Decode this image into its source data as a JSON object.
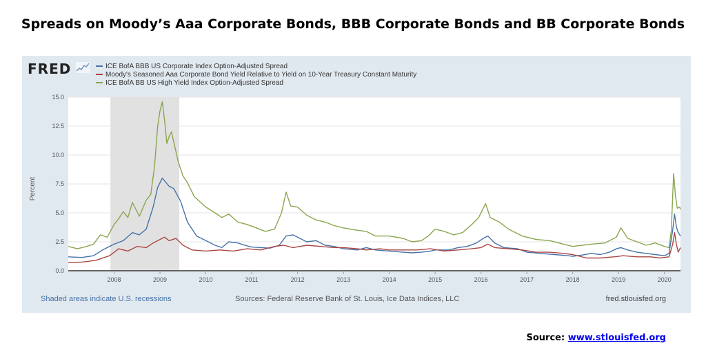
{
  "page": {
    "title": "Spreads on Moody’s Aaa Corporate Bonds, BBB Corporate Bonds and BB Corporate Bonds",
    "source_label": "Source:",
    "source_link": "www.stlouisfed.org"
  },
  "fred": {
    "logo": "FRED",
    "recession_note": "Shaded areas indicate U.S. recessions",
    "sources": "Sources: Federal Reserve Bank of St. Louis, Ice Data Indices, LLC",
    "site": "fred.stlouisfed.org"
  },
  "colors": {
    "bbb": "#4572a7",
    "aaa": "#aa4643",
    "bb": "#89a54e",
    "recession": "#e1e1e1",
    "panel": "#e1e9f0"
  },
  "chart_data": {
    "type": "line",
    "title": "",
    "xlabel": "",
    "ylabel": "Percent",
    "xlim": [
      2007.0,
      2020.35
    ],
    "ylim": [
      0,
      15
    ],
    "yticks": [
      "0.0",
      "2.5",
      "5.0",
      "7.5",
      "10.0",
      "12.5",
      "15.0"
    ],
    "xticks": [
      "2008",
      "2009",
      "2010",
      "2011",
      "2012",
      "2013",
      "2014",
      "2015",
      "2016",
      "2017",
      "2018",
      "2019",
      "2020"
    ],
    "grid": true,
    "legend_position": "top-left",
    "recessions": [
      [
        2007.92,
        2009.42
      ]
    ],
    "series": [
      {
        "name": "ICE BofA BBB US Corporate Index Option-Adjusted Spread",
        "color": "#4572a7",
        "x": [
          2007.0,
          2007.3,
          2007.55,
          2007.75,
          2008.0,
          2008.2,
          2008.4,
          2008.55,
          2008.7,
          2008.85,
          2008.95,
          2009.05,
          2009.2,
          2009.3,
          2009.45,
          2009.6,
          2009.8,
          2010.0,
          2010.2,
          2010.35,
          2010.5,
          2010.7,
          2010.85,
          2011.0,
          2011.2,
          2011.4,
          2011.6,
          2011.75,
          2011.9,
          2012.0,
          2012.2,
          2012.4,
          2012.6,
          2012.8,
          2013.0,
          2013.3,
          2013.5,
          2013.7,
          2014.0,
          2014.3,
          2014.5,
          2014.7,
          2014.9,
          2015.0,
          2015.3,
          2015.5,
          2015.7,
          2015.9,
          2016.05,
          2016.15,
          2016.3,
          2016.5,
          2016.8,
          2017.0,
          2017.3,
          2017.6,
          2017.9,
          2018.0,
          2018.2,
          2018.4,
          2018.6,
          2018.8,
          2018.95,
          2019.05,
          2019.2,
          2019.4,
          2019.6,
          2019.8,
          2020.0,
          2020.1,
          2020.18,
          2020.22,
          2020.26,
          2020.3,
          2020.35
        ],
        "y": [
          1.2,
          1.15,
          1.3,
          1.8,
          2.3,
          2.6,
          3.3,
          3.1,
          3.6,
          5.5,
          7.2,
          8.0,
          7.3,
          7.1,
          6.0,
          4.2,
          3.0,
          2.6,
          2.2,
          2.0,
          2.5,
          2.4,
          2.2,
          2.05,
          2.0,
          1.95,
          2.2,
          3.0,
          3.1,
          2.9,
          2.5,
          2.6,
          2.2,
          2.1,
          1.9,
          1.8,
          2.0,
          1.8,
          1.7,
          1.6,
          1.55,
          1.6,
          1.7,
          1.8,
          1.8,
          2.0,
          2.1,
          2.4,
          2.8,
          3.0,
          2.4,
          2.0,
          1.9,
          1.6,
          1.5,
          1.4,
          1.3,
          1.25,
          1.35,
          1.5,
          1.4,
          1.6,
          1.9,
          2.0,
          1.8,
          1.6,
          1.5,
          1.4,
          1.3,
          1.5,
          3.5,
          4.9,
          3.8,
          3.3,
          3.0
        ]
      },
      {
        "name": "Moody's Seasoned Aaa Corporate Bond Yield Relative to Yield on 10-Year Treasury Constant Maturity",
        "color": "#aa4643",
        "x": [
          2007.0,
          2007.3,
          2007.6,
          2007.9,
          2008.1,
          2008.3,
          2008.5,
          2008.7,
          2008.85,
          2009.0,
          2009.1,
          2009.2,
          2009.35,
          2009.5,
          2009.7,
          2010.0,
          2010.3,
          2010.6,
          2010.9,
          2011.2,
          2011.5,
          2011.7,
          2011.9,
          2012.2,
          2012.5,
          2012.8,
          2013.0,
          2013.3,
          2013.5,
          2013.8,
          2014.0,
          2014.3,
          2014.6,
          2014.9,
          2015.2,
          2015.5,
          2015.8,
          2016.0,
          2016.15,
          2016.3,
          2016.6,
          2016.9,
          2017.2,
          2017.5,
          2017.8,
          2018.0,
          2018.3,
          2018.6,
          2018.9,
          2019.1,
          2019.4,
          2019.7,
          2019.9,
          2020.1,
          2020.18,
          2020.22,
          2020.26,
          2020.3,
          2020.35
        ],
        "y": [
          0.7,
          0.75,
          0.9,
          1.3,
          1.9,
          1.7,
          2.1,
          2.0,
          2.4,
          2.7,
          2.9,
          2.6,
          2.8,
          2.2,
          1.8,
          1.7,
          1.8,
          1.7,
          1.9,
          1.8,
          2.1,
          2.2,
          2.0,
          2.2,
          2.1,
          2.0,
          2.0,
          1.9,
          1.8,
          1.9,
          1.8,
          1.8,
          1.8,
          1.9,
          1.7,
          1.8,
          1.9,
          2.0,
          2.3,
          2.0,
          1.9,
          1.8,
          1.6,
          1.6,
          1.5,
          1.4,
          1.1,
          1.1,
          1.2,
          1.3,
          1.2,
          1.2,
          1.1,
          1.2,
          2.3,
          3.3,
          2.3,
          1.6,
          2.0
        ]
      },
      {
        "name": "ICE BofA BB US High Yield Index Option-Adjusted Spread",
        "color": "#89a54e",
        "x": [
          2007.0,
          2007.2,
          2007.4,
          2007.55,
          2007.7,
          2007.85,
          2008.0,
          2008.1,
          2008.2,
          2008.3,
          2008.4,
          2008.55,
          2008.7,
          2008.8,
          2008.88,
          2008.95,
          2009.0,
          2009.05,
          2009.1,
          2009.15,
          2009.2,
          2009.25,
          2009.32,
          2009.4,
          2009.5,
          2009.6,
          2009.75,
          2010.0,
          2010.2,
          2010.35,
          2010.5,
          2010.7,
          2010.9,
          2011.1,
          2011.3,
          2011.5,
          2011.65,
          2011.75,
          2011.85,
          2012.0,
          2012.2,
          2012.4,
          2012.6,
          2012.8,
          2013.0,
          2013.3,
          2013.5,
          2013.7,
          2014.0,
          2014.3,
          2014.5,
          2014.7,
          2014.85,
          2015.0,
          2015.2,
          2015.4,
          2015.6,
          2015.8,
          2015.95,
          2016.1,
          2016.2,
          2016.4,
          2016.6,
          2016.9,
          2017.2,
          2017.5,
          2017.8,
          2018.0,
          2018.2,
          2018.4,
          2018.7,
          2018.95,
          2019.05,
          2019.2,
          2019.4,
          2019.6,
          2019.8,
          2020.0,
          2020.1,
          2020.15,
          2020.2,
          2020.24,
          2020.28,
          2020.33,
          2020.35
        ],
        "y": [
          2.1,
          1.9,
          2.1,
          2.3,
          3.1,
          2.9,
          4.0,
          4.5,
          5.1,
          4.6,
          5.9,
          4.7,
          6.1,
          6.6,
          9.0,
          12.5,
          13.8,
          14.6,
          13.0,
          11.0,
          11.6,
          12.0,
          10.8,
          9.4,
          8.2,
          7.6,
          6.4,
          5.5,
          5.0,
          4.6,
          4.9,
          4.2,
          4.0,
          3.7,
          3.4,
          3.6,
          5.0,
          6.8,
          5.6,
          5.5,
          4.8,
          4.4,
          4.2,
          3.9,
          3.7,
          3.5,
          3.4,
          3.0,
          3.0,
          2.8,
          2.5,
          2.6,
          3.0,
          3.6,
          3.4,
          3.1,
          3.3,
          4.0,
          4.6,
          5.8,
          4.6,
          4.2,
          3.6,
          3.0,
          2.7,
          2.6,
          2.3,
          2.1,
          2.2,
          2.3,
          2.4,
          2.9,
          3.7,
          2.8,
          2.5,
          2.2,
          2.4,
          2.1,
          2.0,
          3.5,
          8.4,
          6.5,
          5.4,
          5.5,
          5.3
        ]
      }
    ]
  }
}
